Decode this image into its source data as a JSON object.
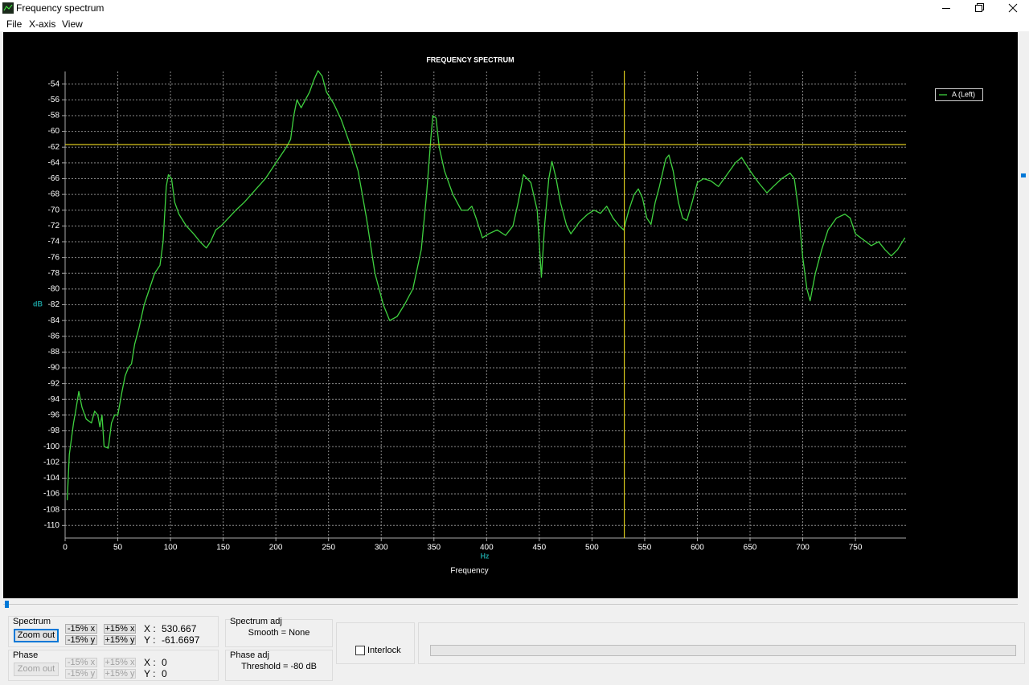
{
  "window": {
    "title": "Frequency spectrum"
  },
  "menu": [
    "File",
    "X-axis",
    "View"
  ],
  "chart_data": {
    "type": "line",
    "title": "FREQUENCY SPECTRUM",
    "xlabel": "Frequency",
    "x_unit": "Hz",
    "ylabel": "dB",
    "x": [
      2,
      4,
      6,
      8,
      10,
      13,
      16,
      20,
      25,
      28,
      31,
      33,
      35,
      37,
      41,
      44,
      47,
      50,
      54,
      57,
      60,
      63,
      66,
      70,
      75,
      80,
      85,
      90,
      93,
      96,
      98,
      101,
      104,
      108,
      115,
      122,
      128,
      134,
      138,
      143,
      148,
      155,
      162,
      170,
      180,
      190,
      200,
      210,
      214,
      217,
      220,
      224,
      228,
      232,
      236,
      240,
      244,
      248,
      255,
      262,
      270,
      278,
      286,
      294,
      302,
      308,
      315,
      322,
      330,
      338,
      343,
      347,
      349,
      352,
      355,
      360,
      368,
      376,
      382,
      386,
      390,
      396,
      402,
      410,
      418,
      425,
      430,
      435,
      442,
      448,
      452,
      455,
      459,
      462,
      466,
      470,
      476,
      480,
      488,
      496,
      502,
      508,
      514,
      520,
      526,
      530,
      535,
      540,
      544,
      548,
      552,
      556,
      560,
      564,
      570,
      573,
      577,
      582,
      586,
      590,
      595,
      600,
      606,
      613,
      620,
      628,
      636,
      642,
      650,
      658,
      666,
      672,
      680,
      688,
      692,
      696,
      700,
      704,
      707,
      712,
      718,
      724,
      732,
      740,
      745,
      750,
      758,
      765,
      772,
      778,
      784,
      790,
      797
    ],
    "series": [
      {
        "name": "A (Left)",
        "color": "#3fd13f",
        "values": [
          -106.8,
          -101,
          -99,
          -97,
          -95.5,
          -93,
          -95,
          -96.5,
          -97,
          -95.5,
          -96,
          -97.5,
          -96,
          -100,
          -100.2,
          -97,
          -96,
          -96,
          -93,
          -91,
          -90,
          -89.5,
          -87,
          -85,
          -82,
          -80,
          -78,
          -77,
          -74,
          -67,
          -65.5,
          -66,
          -69,
          -70.5,
          -72,
          -73,
          -74,
          -74.8,
          -74,
          -72.5,
          -72,
          -71,
          -70,
          -69,
          -67.5,
          -66,
          -64,
          -62,
          -61,
          -58,
          -56,
          -57,
          -56,
          -55,
          -53.5,
          -52.3,
          -53,
          -55,
          -56.5,
          -58.5,
          -61.5,
          -65,
          -71,
          -78,
          -82,
          -84,
          -83.5,
          -82,
          -80,
          -75,
          -68,
          -61,
          -58,
          -58.3,
          -62,
          -65,
          -68,
          -70,
          -70,
          -69.5,
          -71,
          -73.5,
          -73,
          -72.5,
          -73.2,
          -72,
          -69,
          -65.5,
          -66.5,
          -70,
          -78.5,
          -72,
          -66,
          -63.8,
          -66,
          -69,
          -72,
          -73,
          -71.5,
          -70.5,
          -70,
          -70.4,
          -69.5,
          -71,
          -72,
          -72.5,
          -70,
          -68,
          -67.3,
          -68.5,
          -71,
          -71.8,
          -69,
          -67,
          -63.5,
          -63,
          -65,
          -69,
          -71,
          -71.3,
          -69,
          -66.5,
          -66,
          -66.3,
          -67,
          -65.5,
          -64,
          -63.3,
          -65,
          -66.5,
          -67.8,
          -67,
          -66,
          -65.3,
          -66,
          -70,
          -76,
          -80,
          -81.5,
          -78,
          -75,
          -72.5,
          -71,
          -70.5,
          -71,
          -73,
          -73.8,
          -74.5,
          -74,
          -75,
          -75.8,
          -75,
          -73.5
        ]
      }
    ],
    "xlim": [
      0,
      798
    ],
    "ylim": [
      -111.6,
      -52.4
    ],
    "xticks": [
      0,
      50,
      100,
      150,
      200,
      250,
      300,
      350,
      400,
      450,
      500,
      550,
      600,
      650,
      700,
      750
    ],
    "yticks": [
      -54,
      -56,
      -58,
      -60,
      -62,
      -64,
      -66,
      -68,
      -70,
      -72,
      -74,
      -76,
      -78,
      -80,
      -82,
      -84,
      -86,
      -88,
      -90,
      -92,
      -94,
      -96,
      -98,
      -100,
      -102,
      -104,
      -106,
      -108,
      -110
    ],
    "grid": true,
    "legend": "right",
    "cursor": {
      "x": 530.667,
      "y": -61.6697,
      "color": "#d9c81c"
    }
  },
  "controls": {
    "spectrum": {
      "title": "Spectrum",
      "zoom_out": "Zoom out",
      "buttons": [
        "-15% x",
        "+15% x",
        "-15% y",
        "+15% y"
      ],
      "x_label": "X :",
      "y_label": "Y :"
    },
    "phase": {
      "title": "Phase",
      "zoom_out": "Zoom out",
      "buttons": [
        "-15% x",
        "+15% x",
        "-15% y",
        "+15% y"
      ],
      "x_label": "X :",
      "x_value": 0,
      "y_label": "Y :",
      "y_value": 0
    },
    "spectrum_adj": {
      "title": "Spectrum adj",
      "text": "Smooth = None"
    },
    "phase_adj": {
      "title": "Phase adj",
      "text": "Threshold = -80 dB"
    },
    "interlock": {
      "label": "Interlock",
      "checked": false
    }
  }
}
